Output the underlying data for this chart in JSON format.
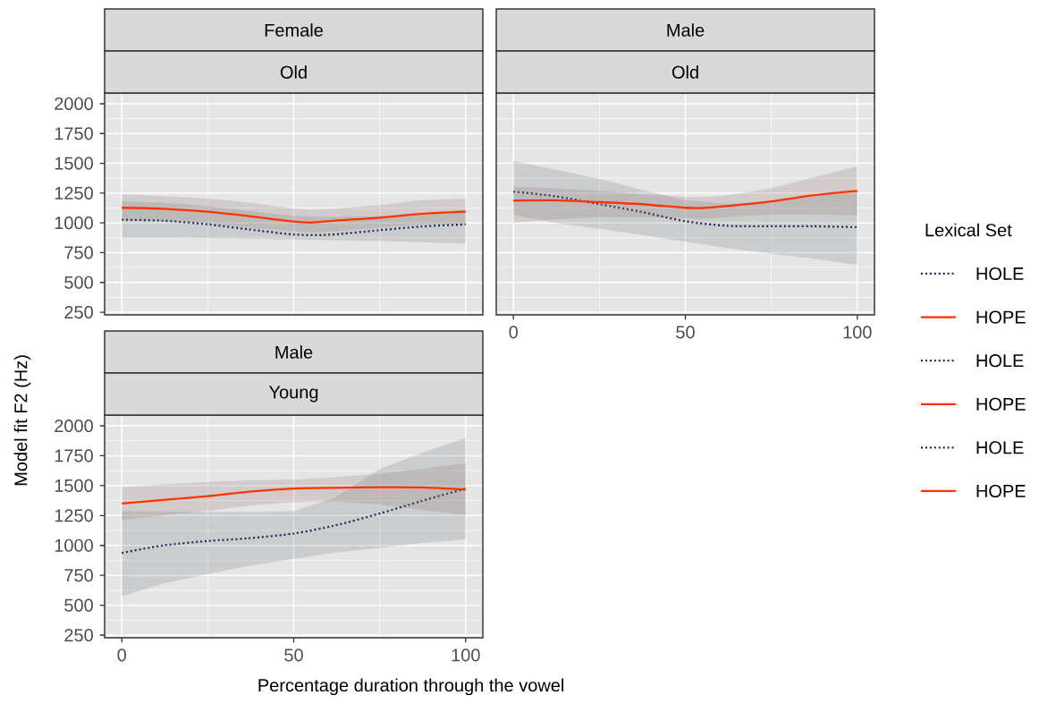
{
  "chart_data": [
    {
      "type": "line",
      "title": "Female",
      "subtitle": "Old",
      "legend_title": "Lexical Set",
      "legend": "right",
      "grid": true,
      "marker": "none",
      "tick_labels": "y",
      "xlim": [
        -5,
        105
      ],
      "ylim": [
        228,
        2090
      ],
      "xticks": [
        0,
        50,
        100
      ],
      "yticks": [
        250,
        500,
        750,
        1000,
        1250,
        1500,
        1750,
        2000
      ],
      "series": [
        {
          "name": "HOLE",
          "color": "#1b2a5c",
          "line_style": "dotted",
          "x": [
            0,
            12,
            25,
            37,
            50,
            60,
            75,
            87,
            100
          ],
          "values": [
            1026,
            1019,
            988,
            945,
            903,
            900,
            939,
            969,
            988
          ],
          "lower": [
            876,
            875,
            872,
            868,
            860,
            855,
            850,
            838,
            826
          ],
          "upper": [
            1181,
            1170,
            1140,
            1100,
            1060,
            1050,
            1060,
            1080,
            1110
          ]
        },
        {
          "name": "HOPE",
          "color": "#ff3300",
          "line_style": "solid",
          "x": [
            0,
            12,
            25,
            37,
            50,
            55,
            62,
            75,
            87,
            100
          ],
          "values": [
            1127,
            1119,
            1094,
            1056,
            1011,
            1003,
            1019,
            1044,
            1076,
            1094
          ],
          "lower": [
            1020,
            1015,
            995,
            960,
            930,
            920,
            930,
            960,
            985,
            990
          ],
          "upper": [
            1239,
            1225,
            1205,
            1170,
            1120,
            1110,
            1120,
            1150,
            1190,
            1206
          ]
        }
      ]
    },
    {
      "type": "line",
      "title": "Male",
      "subtitle": "Old",
      "legend": "right",
      "grid": true,
      "marker": "none",
      "tick_labels": "x",
      "xlim": [
        -5,
        105
      ],
      "ylim": [
        228,
        2090
      ],
      "xticks": [
        0,
        50,
        100
      ],
      "yticks": [
        250,
        500,
        750,
        1000,
        1250,
        1500,
        1750,
        2000
      ],
      "series": [
        {
          "name": "HOLE",
          "color": "#1b2a5c",
          "line_style": "dotted",
          "x": [
            0,
            12,
            25,
            37,
            50,
            62,
            75,
            87,
            100
          ],
          "values": [
            1262,
            1224,
            1157,
            1094,
            1014,
            976,
            972,
            972,
            964
          ],
          "lower": [
            1069,
            1000,
            950,
            900,
            843,
            790,
            740,
            700,
            648
          ],
          "upper": [
            1519,
            1450,
            1370,
            1280,
            1190,
            1160,
            1180,
            1220,
            1270
          ]
        },
        {
          "name": "HOPE",
          "color": "#ff3300",
          "line_style": "solid",
          "x": [
            0,
            12,
            25,
            37,
            50,
            55,
            62,
            75,
            87,
            100
          ],
          "values": [
            1187,
            1189,
            1174,
            1157,
            1127,
            1125,
            1141,
            1181,
            1231,
            1269
          ],
          "lower": [
            1001,
            1030,
            1050,
            1050,
            1040,
            1035,
            1050,
            1070,
            1070,
            1063
          ],
          "upper": [
            1306,
            1290,
            1270,
            1240,
            1219,
            1215,
            1230,
            1290,
            1380,
            1477
          ]
        }
      ]
    },
    {
      "type": "line",
      "title": "Male",
      "subtitle": "Young",
      "xlabel": "Percentage duration through the vowel",
      "ylabel": "Model fit F2 (Hz)",
      "legend": "right",
      "grid": true,
      "marker": "none",
      "xlim": [
        -5,
        105
      ],
      "ylim": [
        228,
        2090
      ],
      "xticks": [
        0,
        50,
        100
      ],
      "yticks": [
        250,
        500,
        750,
        1000,
        1250,
        1500,
        1750,
        2000
      ],
      "series": [
        {
          "name": "HOLE",
          "color": "#1b2a5c",
          "line_style": "dotted",
          "x": [
            0,
            12,
            25,
            37,
            50,
            62,
            75,
            87,
            100
          ],
          "values": [
            937,
            1000,
            1037,
            1060,
            1100,
            1167,
            1267,
            1370,
            1475
          ],
          "lower": [
            575,
            680,
            760,
            830,
            887,
            940,
            980,
            1020,
            1050
          ],
          "upper": [
            1287,
            1285,
            1280,
            1280,
            1287,
            1400,
            1640,
            1770,
            1900
          ]
        },
        {
          "name": "HOPE",
          "color": "#ff3300",
          "line_style": "solid",
          "x": [
            0,
            12,
            25,
            37,
            50,
            62,
            75,
            87,
            100
          ],
          "values": [
            1350,
            1380,
            1412,
            1450,
            1475,
            1482,
            1487,
            1485,
            1467
          ],
          "lower": [
            1212,
            1250,
            1290,
            1330,
            1362,
            1370,
            1340,
            1300,
            1255
          ],
          "upper": [
            1487,
            1510,
            1530,
            1545,
            1550,
            1570,
            1600,
            1640,
            1687
          ]
        }
      ]
    }
  ]
}
